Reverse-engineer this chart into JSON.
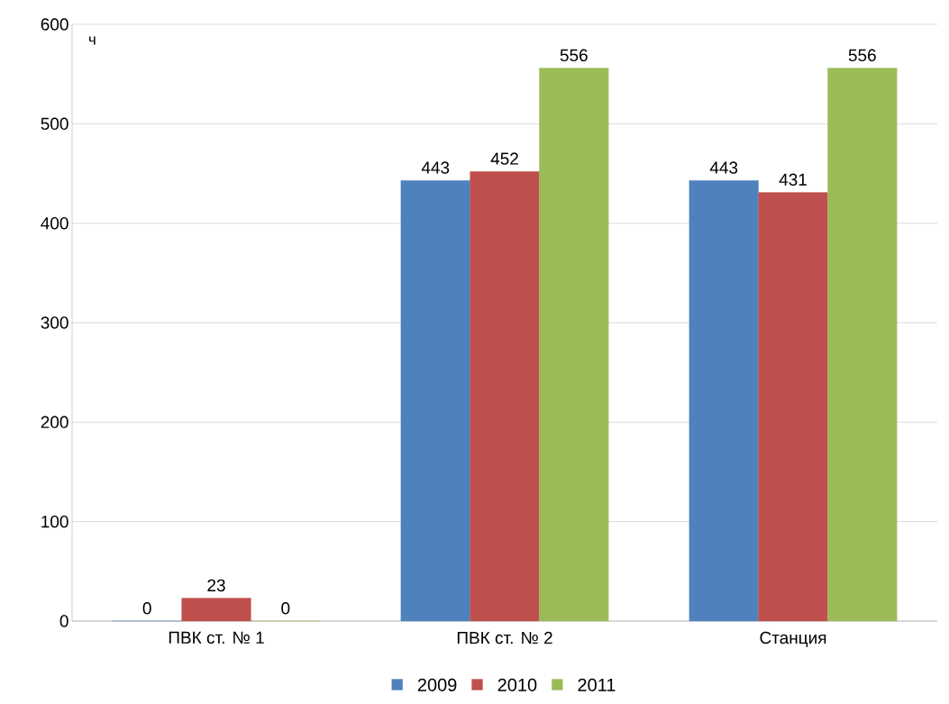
{
  "chart_data": {
    "type": "bar",
    "ylabel": "ч",
    "categories": [
      "ПВК ст. № 1",
      "ПВК ст. № 2",
      "Станция"
    ],
    "series": [
      {
        "name": "2009",
        "color": "#4f81bd",
        "values": [
          0,
          443,
          443
        ]
      },
      {
        "name": "2010",
        "color": "#c0504d",
        "values": [
          23,
          452,
          431
        ]
      },
      {
        "name": "2011",
        "color": "#9bbb59",
        "values": [
          0,
          556,
          556
        ]
      }
    ],
    "ylim": [
      0,
      600
    ],
    "yticks": [
      0,
      100,
      200,
      300,
      400,
      500,
      600
    ],
    "grid": "y",
    "legend": "bottom",
    "data_labels": true
  }
}
